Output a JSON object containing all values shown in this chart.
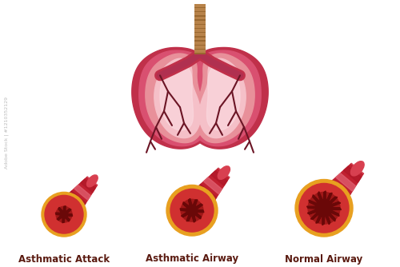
{
  "background_color": "#ffffff",
  "lung_outer": "#c0304a",
  "lung_mid": "#d95070",
  "lung_inner": "#e8909a",
  "lung_light": "#f5c0c8",
  "lung_highlight": "#fad8de",
  "trachea_color": "#b8834a",
  "trachea_dark": "#9a6830",
  "bronchi_color": "#6b1525",
  "labels": [
    "Asthmatic Attack",
    "Asthmatic Airway",
    "Normal Airway"
  ],
  "label_color": "#5a1a10",
  "airway_gold": "#e8a020",
  "airway_red": "#d03030",
  "airway_dark_red": "#a01818",
  "airway_darkest": "#6a0808",
  "tube_dark": "#c02030",
  "tube_mid": "#d84050",
  "tube_light": "#e87080",
  "tube_stripe_dark": "#b01828",
  "tube_stripe_light": "#e06070"
}
